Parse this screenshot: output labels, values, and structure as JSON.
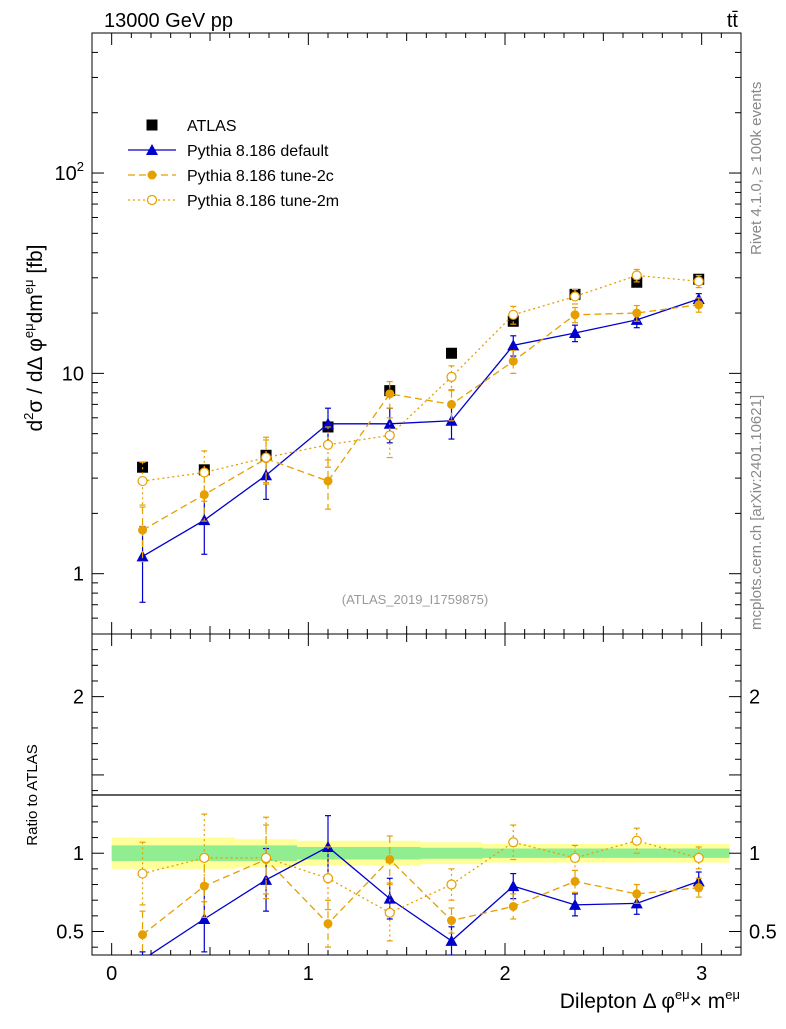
{
  "header": {
    "energy_label": "13000 GeV pp",
    "process_label": "tt̄"
  },
  "side_labels": {
    "rivet": "Rivet 4.1.0, ≥ 100k events",
    "mcplots": "mcplots.cern.ch [arXiv:2401.10621]"
  },
  "analysis_label": "(ATLAS_2019_I1759875)",
  "colors": {
    "data": "#000000",
    "default": "#0000cc",
    "tune2c": "#e69f00",
    "tune2m": "#e69f00",
    "band_inner": "#90ee90",
    "band_outer": "#ffff99"
  },
  "chart_data": [
    {
      "type": "line",
      "panel": "main",
      "title": "",
      "xlabel": "",
      "ylabel": "d²σ / dΔφ^{eμ}dm^{eμ} [fb]",
      "yscale": "log",
      "xlim": [
        -0.1,
        3.2
      ],
      "ylim": [
        0.5,
        500
      ],
      "ytick_labels": [
        "1",
        "10",
        "10²"
      ],
      "legend_position": "top-left",
      "x": [
        0.157,
        0.471,
        0.785,
        1.1,
        1.414,
        1.728,
        2.042,
        2.356,
        2.67,
        2.985
      ],
      "series": [
        {
          "name": "ATLAS",
          "marker": "square",
          "values": [
            3.4,
            3.3,
            3.9,
            5.4,
            8.2,
            12.6,
            18.2,
            24.8,
            28.5,
            29.5
          ]
        },
        {
          "name": "Pythia 8.186 default",
          "marker": "triangle",
          "line": "solid",
          "values": [
            1.22,
            1.85,
            3.1,
            5.6,
            5.6,
            5.8,
            13.8,
            15.9,
            18.5,
            23.5
          ],
          "errors": [
            0.5,
            0.6,
            0.75,
            1.1,
            1.1,
            1.1,
            1.6,
            1.5,
            1.6,
            1.5
          ]
        },
        {
          "name": "Pythia 8.186 tune-2c",
          "marker": "circle",
          "line": "dashed",
          "values": [
            1.65,
            2.48,
            3.75,
            2.9,
            7.9,
            7.0,
            11.5,
            19.6,
            20.0,
            22.0
          ],
          "errors": [
            0.5,
            0.65,
            0.9,
            0.8,
            1.2,
            1.2,
            1.5,
            1.7,
            1.8,
            1.8
          ]
        },
        {
          "name": "Pythia 8.186 tune-2m",
          "marker": "open-circle",
          "line": "dotted",
          "values": [
            2.9,
            3.2,
            3.8,
            4.4,
            4.9,
            9.6,
            19.6,
            24.2,
            30.8,
            28.8
          ],
          "errors": [
            0.7,
            0.9,
            1.0,
            1.0,
            1.1,
            1.3,
            2.0,
            2.0,
            2.2,
            2.0
          ]
        }
      ]
    },
    {
      "type": "line",
      "panel": "ratio",
      "xlabel": "Dilepton Δ φ^{eμ}× m^{eμ}",
      "ylabel": "Ratio to ATLAS",
      "xlim": [
        -0.1,
        3.2
      ],
      "ylim": [
        0.35,
        2.4
      ],
      "xtick_labels": [
        "0",
        "1",
        "2",
        "3"
      ],
      "ytick_labels": [
        "0.5",
        "1",
        "2"
      ],
      "x": [
        0.157,
        0.471,
        0.785,
        1.1,
        1.414,
        1.728,
        2.042,
        2.356,
        2.67,
        2.985
      ],
      "band_inner_halfwidth": [
        0.05,
        0.05,
        0.05,
        0.04,
        0.04,
        0.035,
        0.03,
        0.03,
        0.03,
        0.03
      ],
      "band_outer_halfwidth": [
        0.1,
        0.1,
        0.09,
        0.08,
        0.08,
        0.07,
        0.06,
        0.06,
        0.06,
        0.06
      ],
      "series": [
        {
          "name": "Pythia 8.186 default",
          "marker": "triangle",
          "line": "solid",
          "values": [
            0.32,
            0.58,
            0.83,
            1.04,
            0.71,
            0.44,
            0.79,
            0.67,
            0.68,
            0.82
          ],
          "errors": [
            0.05,
            0.21,
            0.2,
            0.2,
            0.13,
            0.09,
            0.08,
            0.07,
            0.07,
            0.06
          ]
        },
        {
          "name": "Pythia 8.186 tune-2c",
          "marker": "circle",
          "line": "dashed",
          "values": [
            0.48,
            0.79,
            0.96,
            0.55,
            0.96,
            0.57,
            0.66,
            0.82,
            0.74,
            0.78
          ],
          "errors": [
            0.15,
            0.2,
            0.22,
            0.15,
            0.15,
            0.08,
            0.08,
            0.07,
            0.06,
            0.06
          ]
        },
        {
          "name": "Pythia 8.186 tune-2m",
          "marker": "open-circle",
          "line": "dotted",
          "values": [
            0.87,
            0.97,
            0.97,
            0.84,
            0.62,
            0.8,
            1.07,
            0.97,
            1.08,
            0.97
          ],
          "errors": [
            0.2,
            0.28,
            0.26,
            0.2,
            0.18,
            0.1,
            0.11,
            0.08,
            0.08,
            0.07
          ]
        }
      ]
    }
  ]
}
